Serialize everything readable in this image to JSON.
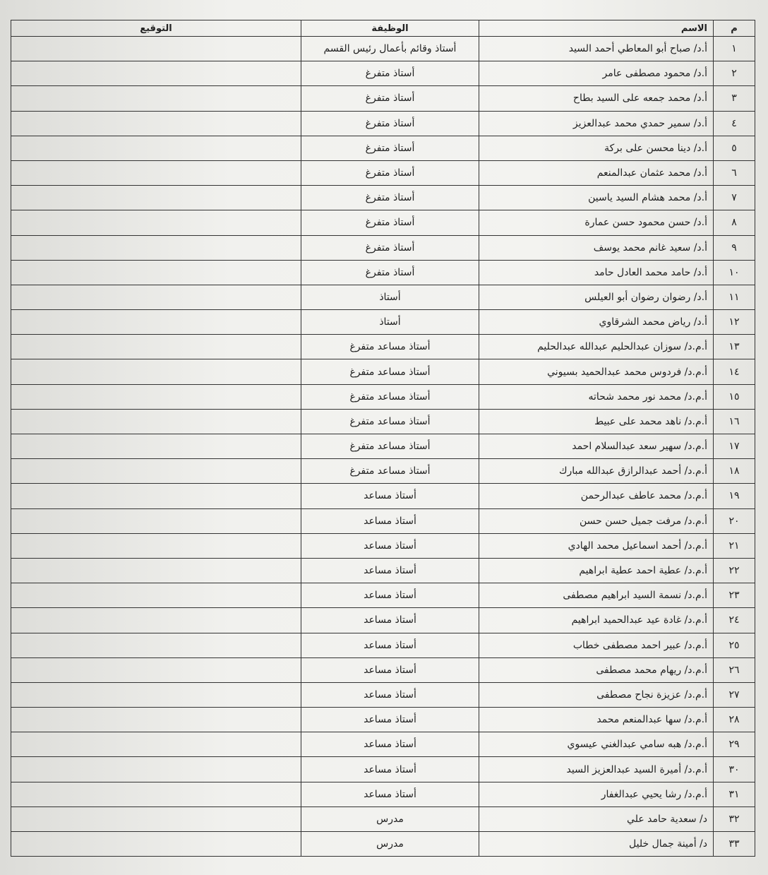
{
  "table": {
    "header": [
      "م",
      "الاسم",
      "الوظيفة",
      "التوقيع"
    ],
    "rows": [
      [
        "١",
        "أ.د/ صباح أبو المعاطي أحمد السيد",
        "أستاذ وقائم بأعمال رئيس القسم"
      ],
      [
        "٢",
        "أ.د/ محمود مصطفى عامر",
        "أستاذ متفرغ"
      ],
      [
        "٣",
        "أ.د/ محمد جمعه على السيد بطاح",
        "أستاذ متفرغ"
      ],
      [
        "٤",
        "أ.د/ سمير حمدي محمد عبدالعزيز",
        "أستاذ متفرغ"
      ],
      [
        "٥",
        "أ.د/ دينا محسن على بركة",
        "أستاذ متفرغ"
      ],
      [
        "٦",
        "أ.د/ محمد عثمان عبدالمنعم",
        "أستاذ متفرغ"
      ],
      [
        "٧",
        "أ.د/ محمد هشام السيد ياسين",
        "أستاذ متفرغ"
      ],
      [
        "٨",
        "أ.د/ حسن محمود حسن عمارة",
        "أستاذ متفرغ"
      ],
      [
        "٩",
        "أ.د/ سعيد غانم محمد يوسف",
        "أستاذ متفرغ"
      ],
      [
        "١٠",
        "أ.د/ حامد محمد العادل حامد",
        "أستاذ متفرغ"
      ],
      [
        "١١",
        "أ.د/ رضوان رضوان أبو العيلس",
        "أستاذ"
      ],
      [
        "١٢",
        "أ.د/ رياض محمد الشرقاوي",
        "أستاذ"
      ],
      [
        "١٣",
        "أ.م.د/ سوزان عبدالحليم عبدالله عبدالحليم",
        "أستاذ مساعد متفرغ"
      ],
      [
        "١٤",
        "أ.م.د/ فردوس محمد عبدالحميد بسيوني",
        "أستاذ مساعد متفرغ"
      ],
      [
        "١٥",
        "أ.م.د/ محمد نور محمد شحاته",
        "أستاذ مساعد متفرغ"
      ],
      [
        "١٦",
        "أ.م.د/ ناهد محمد على عبيط",
        "أستاذ مساعد متفرغ"
      ],
      [
        "١٧",
        "أ.م.د/ سهير سعد عبدالسلام احمد",
        "أستاذ مساعد متفرغ"
      ],
      [
        "١٨",
        "أ.م.د/ أحمد عبدالرازق عبدالله مبارك",
        "أستاذ مساعد متفرغ"
      ],
      [
        "١٩",
        "أ.م.د/ محمد عاطف عبدالرحمن",
        "أستاذ مساعد"
      ],
      [
        "٢٠",
        "أ.م.د/ مرفت جميل حسن حسن",
        "أستاذ مساعد"
      ],
      [
        "٢١",
        "أ.م.د/ أحمد اسماعيل محمد الهادي",
        "أستاذ مساعد"
      ],
      [
        "٢٢",
        "أ.م.د/ عطية احمد عطية ابراهيم",
        "أستاذ مساعد"
      ],
      [
        "٢٣",
        "أ.م.د/ نسمة السيد ابراهيم مصطفى",
        "أستاذ مساعد"
      ],
      [
        "٢٤",
        "أ.م.د/ غادة عيد عبدالحميد ابراهيم",
        "أستاذ مساعد"
      ],
      [
        "٢٥",
        "أ.م.د/ عبير احمد مصطفى خطاب",
        "أستاذ مساعد"
      ],
      [
        "٢٦",
        "أ.م.د/ ريهام محمد مصطفى",
        "أستاذ مساعد"
      ],
      [
        "٢٧",
        "أ.م.د/ عزيزة نجاح مصطفى",
        "أستاذ مساعد"
      ],
      [
        "٢٨",
        "أ.م.د/ سها عبدالمنعم محمد",
        "أستاذ مساعد"
      ],
      [
        "٢٩",
        "أ.م.د/ هبه سامي عبدالغني عيسوي",
        "أستاذ مساعد"
      ],
      [
        "٣٠",
        "أ.م.د/ أميرة السيد عبدالعزيز السيد",
        "أستاذ مساعد"
      ],
      [
        "٣١",
        "أ.م.د/ رشا يحيي عبدالغفار",
        "أستاذ مساعد"
      ],
      [
        "٣٢",
        "د/ سعدية حامد علي",
        "مدرس"
      ],
      [
        "٣٣",
        "د/ أمينة جمال خليل",
        "مدرس"
      ]
    ]
  }
}
